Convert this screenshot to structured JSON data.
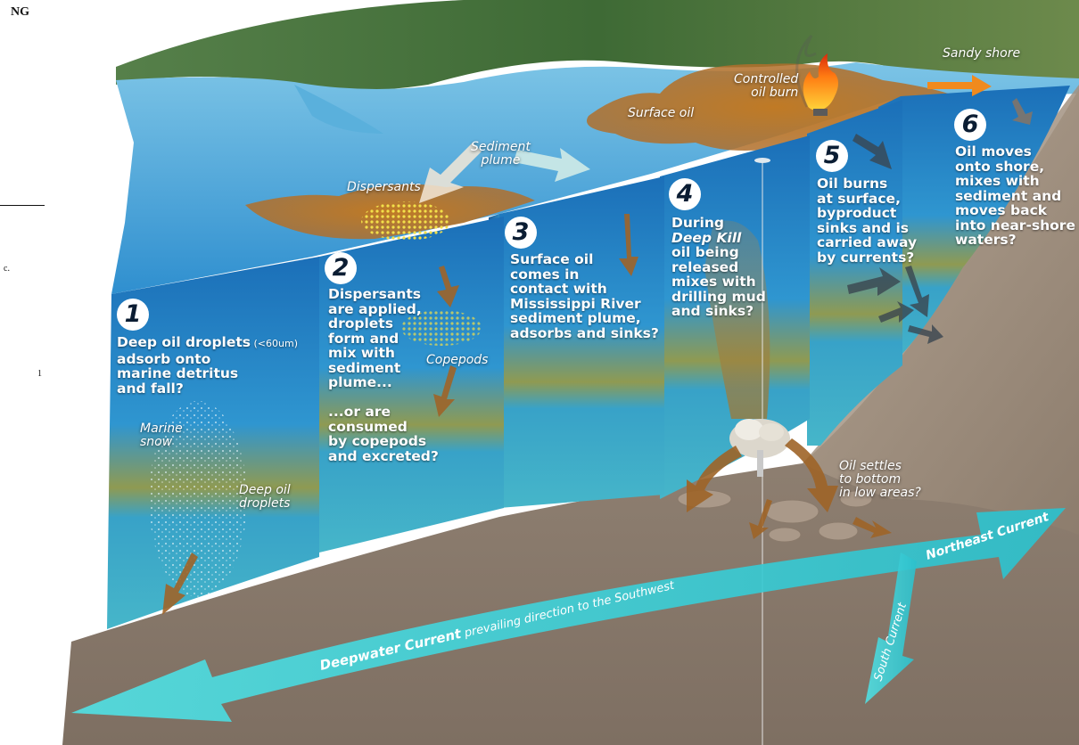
{
  "margin_text": {
    "heading": "NG",
    "fragment": "c.",
    "number": "1"
  },
  "labels": {
    "sandy_shore": "Sandy shore",
    "controlled_burn": "Controlled\noil burn",
    "surface_oil": "Surface oil",
    "sediment_plume": "Sediment\nplume",
    "dispersants": "Dispersants",
    "copepods": "Copepods",
    "marine_snow": "Marine\nsnow",
    "deep_oil_droplets": "Deep oil\ndroplets",
    "oil_settles": "Oil settles\nto bottom\nin low areas?"
  },
  "panels": [
    {
      "number": "1",
      "text_main": "Deep oil droplets",
      "text_small": " (<60um)",
      "text_rest": "\nadsorb onto\nmarine detritus\nand fall?"
    },
    {
      "number": "2",
      "text": "Dispersants\nare applied,\ndroplets\nform and\nmix with\nsediment\nplume...\n\n...or are\nconsumed\nby copepods\nand excreted?"
    },
    {
      "number": "3",
      "text": "Surface oil\ncomes in\ncontact with\nMississippi River\nsediment plume,\nadsorbs and sinks?"
    },
    {
      "number": "4",
      "text_pre": "During\n",
      "text_em": "Deep Kill",
      "text_post": "\noil being\nreleased\nmixes with\ndrilling mud\nand sinks?"
    },
    {
      "number": "5",
      "text": "Oil burns\nat surface,\nbyproduct\nsinks and is\ncarried away\nby currents?"
    },
    {
      "number": "6",
      "text": "Oil moves\nonto shore,\nmixes with\nsediment and\nmoves back\ninto near-shore\nwaters?"
    }
  ],
  "currents": {
    "deepwater_bold": "Deepwater Current",
    "deepwater_rest": " prevailing direction to the Southwest",
    "northeast": "Northeast Current",
    "south": "South Current"
  },
  "colors": {
    "water_light": "#4fb6e6",
    "water_deep": "#1c6fb4",
    "oil": "#b8742a",
    "seafloor": "#9a8877",
    "land": "#3f6b32",
    "current_arrow": "#46d3d8"
  }
}
